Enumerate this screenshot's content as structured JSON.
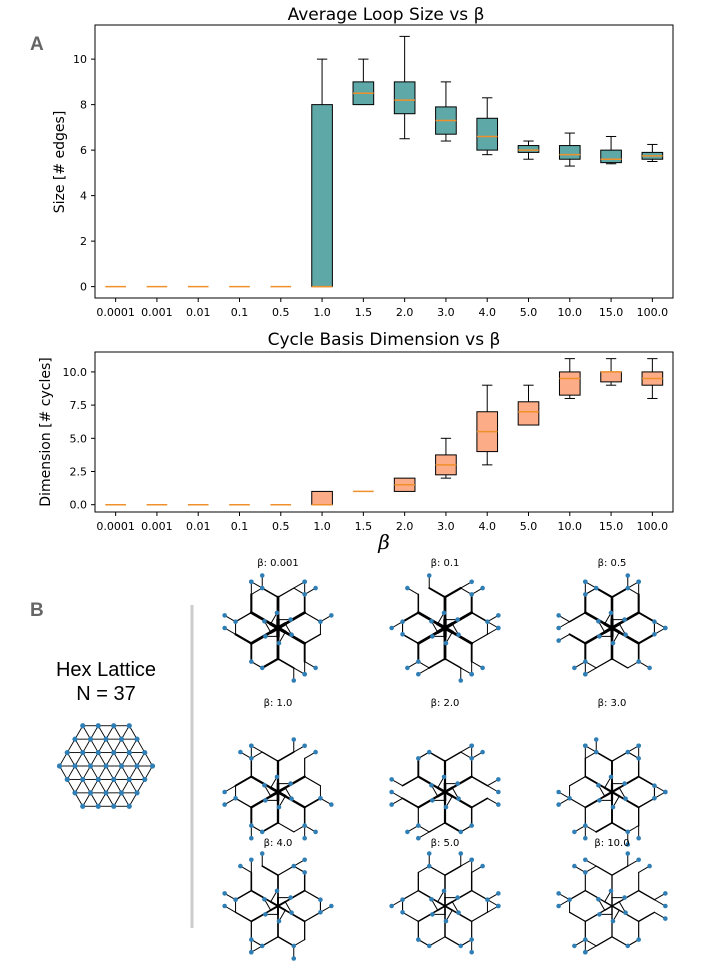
{
  "panel_a_label": "A",
  "panel_b_label": "B",
  "colors": {
    "box1": "#5fa8a8",
    "box2": "#fdac88",
    "median": "#f0902a",
    "node": "#2f7fb6"
  },
  "chart_data": [
    {
      "type": "box",
      "title": "Average Loop Size vs β",
      "ylabel": "Size [# edges]",
      "xlabel": "",
      "ylim": [
        -0.5,
        11.5
      ],
      "yticks": [
        0,
        2,
        4,
        6,
        8,
        10
      ],
      "ytick_labels": [
        "0",
        "2",
        "4",
        "6",
        "8",
        "10"
      ],
      "categories": [
        "0.0001",
        "0.001",
        "0.01",
        "0.1",
        "0.5",
        "1.0",
        "1.5",
        "2.0",
        "3.0",
        "4.0",
        "5.0",
        "10.0",
        "15.0",
        "100.0"
      ],
      "boxes": [
        {
          "whislo": 0,
          "q1": 0,
          "med": 0,
          "q3": 0,
          "whishi": 0
        },
        {
          "whislo": 0,
          "q1": 0,
          "med": 0,
          "q3": 0,
          "whishi": 0
        },
        {
          "whislo": 0,
          "q1": 0,
          "med": 0,
          "q3": 0,
          "whishi": 0
        },
        {
          "whislo": 0,
          "q1": 0,
          "med": 0,
          "q3": 0,
          "whishi": 0
        },
        {
          "whislo": 0,
          "q1": 0,
          "med": 0,
          "q3": 0,
          "whishi": 0
        },
        {
          "whislo": 0,
          "q1": 0,
          "med": 0,
          "q3": 8.0,
          "whishi": 10.0
        },
        {
          "whislo": 8.0,
          "q1": 8.0,
          "med": 8.5,
          "q3": 9.0,
          "whishi": 10.0
        },
        {
          "whislo": 6.5,
          "q1": 7.6,
          "med": 8.2,
          "q3": 9.0,
          "whishi": 11.0
        },
        {
          "whislo": 6.4,
          "q1": 6.7,
          "med": 7.3,
          "q3": 7.9,
          "whishi": 9.0
        },
        {
          "whislo": 5.8,
          "q1": 6.0,
          "med": 6.6,
          "q3": 7.4,
          "whishi": 8.3
        },
        {
          "whislo": 5.6,
          "q1": 5.9,
          "med": 6.0,
          "q3": 6.2,
          "whishi": 6.4
        },
        {
          "whislo": 5.3,
          "q1": 5.6,
          "med": 5.8,
          "q3": 6.2,
          "whishi": 6.75
        },
        {
          "whislo": 5.4,
          "q1": 5.45,
          "med": 5.6,
          "q3": 6.0,
          "whishi": 6.6
        },
        {
          "whislo": 5.5,
          "q1": 5.6,
          "med": 5.75,
          "q3": 5.9,
          "whishi": 6.25
        }
      ]
    },
    {
      "type": "box",
      "title": "Cycle Basis Dimension vs β",
      "ylabel": "Dimension [# cycles]",
      "xlabel": "β",
      "ylim": [
        -0.55,
        11.5
      ],
      "yticks": [
        0,
        2.5,
        5,
        7.5,
        10
      ],
      "ytick_labels": [
        "0.0",
        "2.5",
        "5.0",
        "7.5",
        "10.0"
      ],
      "categories": [
        "0.0001",
        "0.001",
        "0.01",
        "0.1",
        "0.5",
        "1.0",
        "1.5",
        "2.0",
        "3.0",
        "4.0",
        "5.0",
        "10.0",
        "15.0",
        "100.0"
      ],
      "boxes": [
        {
          "whislo": 0,
          "q1": 0,
          "med": 0,
          "q3": 0,
          "whishi": 0
        },
        {
          "whislo": 0,
          "q1": 0,
          "med": 0,
          "q3": 0,
          "whishi": 0
        },
        {
          "whislo": 0,
          "q1": 0,
          "med": 0,
          "q3": 0,
          "whishi": 0
        },
        {
          "whislo": 0,
          "q1": 0,
          "med": 0,
          "q3": 0,
          "whishi": 0
        },
        {
          "whislo": 0,
          "q1": 0,
          "med": 0,
          "q3": 0,
          "whishi": 0
        },
        {
          "whislo": 0,
          "q1": 0,
          "med": 0,
          "q3": 1,
          "whishi": 1
        },
        {
          "whislo": 1,
          "q1": 1,
          "med": 1,
          "q3": 1,
          "whishi": 1
        },
        {
          "whislo": 1,
          "q1": 1,
          "med": 1.5,
          "q3": 2,
          "whishi": 2
        },
        {
          "whislo": 2,
          "q1": 2.25,
          "med": 3,
          "q3": 3.75,
          "whishi": 5
        },
        {
          "whislo": 3,
          "q1": 4,
          "med": 5.5,
          "q3": 7,
          "whishi": 9
        },
        {
          "whislo": 6,
          "q1": 6,
          "med": 7,
          "q3": 7.75,
          "whishi": 9
        },
        {
          "whislo": 8,
          "q1": 8.25,
          "med": 9.5,
          "q3": 10,
          "whishi": 11
        },
        {
          "whislo": 9,
          "q1": 9.25,
          "med": 10,
          "q3": 10,
          "whishi": 11
        },
        {
          "whislo": 8,
          "q1": 9,
          "med": 9.5,
          "q3": 10,
          "whishi": 11
        }
      ]
    }
  ],
  "lattice": {
    "title": "Hex Lattice",
    "subtitle": "N = 37"
  },
  "graphs": [
    {
      "label": "β: 0.001"
    },
    {
      "label": "β: 0.1"
    },
    {
      "label": "β: 0.5"
    },
    {
      "label": "β: 1.0"
    },
    {
      "label": "β: 2.0"
    },
    {
      "label": "β: 3.0"
    },
    {
      "label": "β: 4.0"
    },
    {
      "label": "β: 5.0"
    },
    {
      "label": "β: 10.0"
    }
  ]
}
